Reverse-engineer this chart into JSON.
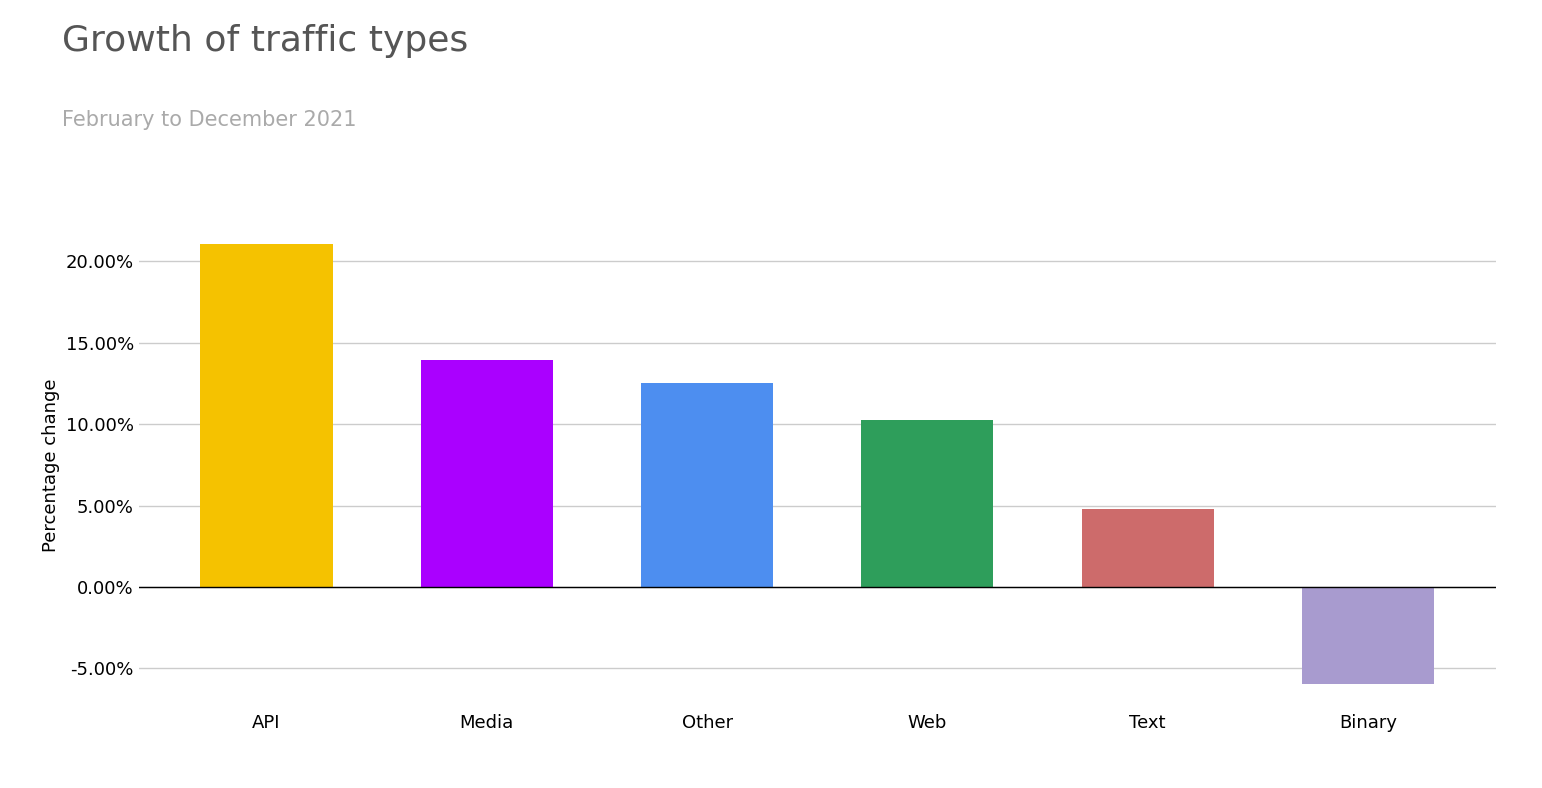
{
  "title": "Growth of traffic types",
  "subtitle": "February to December 2021",
  "categories": [
    "API",
    "Media",
    "Other",
    "Web",
    "Text",
    "Binary"
  ],
  "values": [
    0.2105,
    0.1395,
    0.1255,
    0.1025,
    0.048,
    -0.0595
  ],
  "bar_colors": [
    "#F5C200",
    "#AA00FF",
    "#4D8EF0",
    "#2E9E5B",
    "#CD6B6B",
    "#A89BCF"
  ],
  "ylabel": "Percentage change",
  "ylim": [
    -0.075,
    0.225
  ],
  "yticks": [
    -0.05,
    0.0,
    0.05,
    0.1,
    0.15,
    0.2
  ],
  "background_color": "#ffffff",
  "title_fontsize": 26,
  "subtitle_fontsize": 15,
  "ylabel_fontsize": 13,
  "tick_fontsize": 13,
  "title_color": "#555555",
  "subtitle_color": "#aaaaaa",
  "ylabel_color": "#000000",
  "grid_color": "#cccccc",
  "bar_width": 0.6
}
